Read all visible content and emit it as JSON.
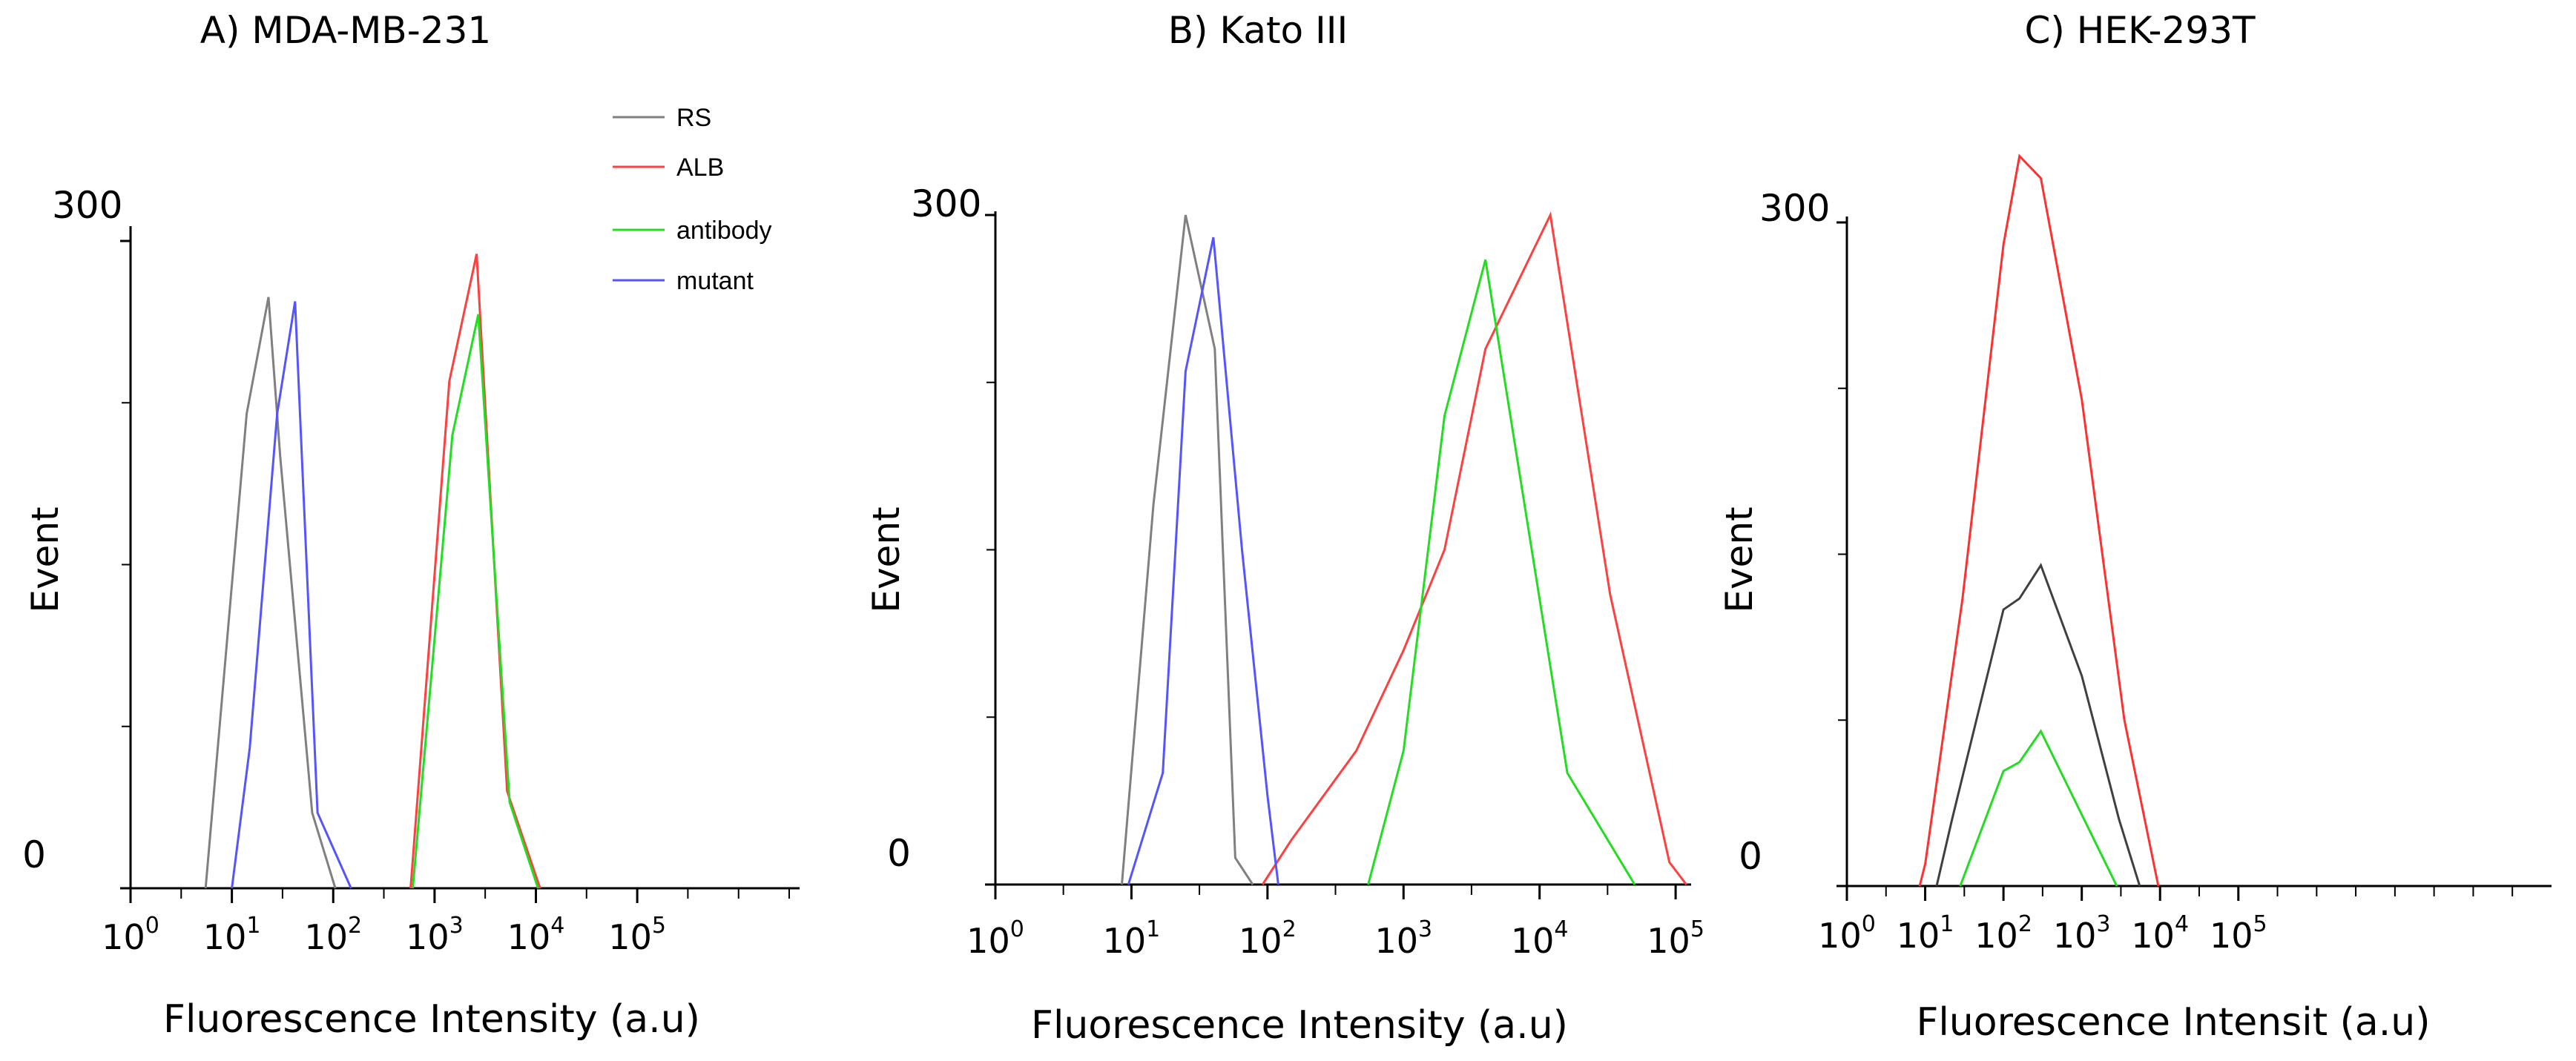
{
  "chart_data": [
    {
      "type": "line",
      "panel": "A",
      "title": "A) MDA-MB-231",
      "xlabel": "Fluorescence Intensity (a.u)",
      "ylabel": "Event",
      "xscale": "log",
      "xlim": [
        1,
        4000000
      ],
      "ylim": [
        0,
        300
      ],
      "yticks": [
        {
          "value": 0,
          "label": "0"
        },
        {
          "value": 300,
          "label": "300"
        }
      ],
      "minor_ytick_values": [
        75,
        150,
        225
      ],
      "xticks": [
        {
          "value": 1,
          "base": "10",
          "exp": "0"
        },
        {
          "value": 10,
          "base": "10",
          "exp": "1"
        },
        {
          "value": 100,
          "base": "10",
          "exp": "2"
        },
        {
          "value": 1000,
          "base": "10",
          "exp": "3"
        },
        {
          "value": 10000,
          "base": "10",
          "exp": "4"
        },
        {
          "value": 100000,
          "base": "10",
          "exp": "5"
        }
      ],
      "minor_xtick_values": [
        3.16,
        31.6,
        316,
        3160,
        31600,
        316000,
        1000000,
        3160000
      ],
      "legend": {
        "position": "top-right",
        "entries": [
          "RS",
          "ALB",
          "antibody",
          "mutant"
        ]
      },
      "series": [
        {
          "name": "RS",
          "color": "#808080",
          "x": [
            5.5,
            14,
            23,
            30,
            62,
            105
          ],
          "y": [
            0,
            220,
            274,
            200,
            35,
            0
          ]
        },
        {
          "name": "ALB",
          "color": "#ff4040",
          "x": [
            580,
            1400,
            2600,
            5200,
            11000
          ],
          "y": [
            0,
            235,
            294,
            45,
            0
          ]
        },
        {
          "name": "antibody",
          "color": "#22dd22",
          "x": [
            610,
            1500,
            2700,
            5500,
            10500
          ],
          "y": [
            0,
            210,
            266,
            40,
            0
          ]
        },
        {
          "name": "mutant",
          "color": "#5555ff",
          "x": [
            10,
            15,
            28,
            42,
            70,
            150
          ],
          "y": [
            0,
            65,
            220,
            272,
            35,
            0
          ]
        }
      ]
    },
    {
      "type": "line",
      "panel": "B",
      "title": "B) Kato III",
      "xlabel": "Fluorescence Intensity (a.u)",
      "ylabel": "Event",
      "xscale": "log",
      "xlim": [
        1,
        130000
      ],
      "ylim": [
        0,
        300
      ],
      "yticks": [
        {
          "value": 0,
          "label": "0"
        },
        {
          "value": 300,
          "label": "300"
        }
      ],
      "minor_ytick_values": [
        75,
        150,
        225
      ],
      "xticks": [
        {
          "value": 1,
          "base": "10",
          "exp": "0"
        },
        {
          "value": 10,
          "base": "10",
          "exp": "1"
        },
        {
          "value": 100,
          "base": "10",
          "exp": "2"
        },
        {
          "value": 1000,
          "base": "10",
          "exp": "3"
        },
        {
          "value": 10000,
          "base": "10",
          "exp": "4"
        },
        {
          "value": 100000,
          "base": "10",
          "exp": "5"
        }
      ],
      "minor_xtick_values": [
        3.16,
        31.6,
        316,
        3160,
        31600
      ],
      "legend": null,
      "series": [
        {
          "name": "RS",
          "color": "#808080",
          "x": [
            8.5,
            14.5,
            25,
            41,
            58,
            78
          ],
          "y": [
            0,
            170,
            300,
            240,
            12,
            0
          ]
        },
        {
          "name": "ALB",
          "color": "#ff4040",
          "x": [
            92,
            150,
            450,
            1000,
            2000,
            4000,
            12000,
            33000,
            90000,
            120000
          ],
          "y": [
            0,
            20,
            60,
            105,
            150,
            240,
            300,
            130,
            10,
            0
          ]
        },
        {
          "name": "antibody",
          "color": "#22dd22",
          "x": [
            550,
            1000,
            2000,
            4000,
            16000,
            50000
          ],
          "y": [
            0,
            60,
            210,
            280,
            50,
            0
          ]
        },
        {
          "name": "mutant",
          "color": "#5555ff",
          "x": [
            9.5,
            17,
            25,
            40,
            65,
            100,
            120
          ],
          "y": [
            0,
            50,
            230,
            290,
            150,
            40,
            0
          ]
        }
      ]
    },
    {
      "type": "line",
      "panel": "C",
      "title": "C)  HEK-293T",
      "xlabel": "Fluorescence Intensit (a.u)",
      "ylabel": "Event",
      "xscale": "log",
      "xlim": [
        1,
        1000000000
      ],
      "ylim": [
        0,
        300
      ],
      "yticks": [
        {
          "value": 0,
          "label": "0"
        },
        {
          "value": 300,
          "label": "300"
        }
      ],
      "minor_ytick_values": [
        75,
        150,
        225
      ],
      "xticks": [
        {
          "value": 1,
          "base": "10",
          "exp": "0"
        },
        {
          "value": 10,
          "base": "10",
          "exp": "1"
        },
        {
          "value": 100,
          "base": "10",
          "exp": "2"
        },
        {
          "value": 1000,
          "base": "10",
          "exp": "3"
        },
        {
          "value": 10000,
          "base": "10",
          "exp": "4"
        },
        {
          "value": 100000,
          "base": "10",
          "exp": "5"
        }
      ],
      "minor_xtick_values": [
        3.16,
        31.6,
        316,
        3160,
        31600,
        316000,
        1000000,
        3160000,
        10000000,
        31600000,
        100000000,
        316000000
      ],
      "legend": null,
      "series": [
        {
          "name": "RS",
          "color": "#404040",
          "x": [
            14,
            22,
            100,
            160,
            300,
            1000,
            3000,
            5500
          ],
          "y": [
            0,
            30,
            125,
            130,
            145,
            95,
            30,
            0
          ]
        },
        {
          "name": "ALB",
          "color": "#ff3030",
          "x": [
            8.5,
            10,
            30,
            100,
            160,
            300,
            1000,
            3500,
            9500
          ],
          "y": [
            0,
            10,
            130,
            290,
            330,
            320,
            220,
            75,
            0
          ]
        },
        {
          "name": "antibody",
          "color": "#22dd22",
          "x": [
            28,
            100,
            160,
            300,
            2800
          ],
          "y": [
            0,
            52,
            56,
            70,
            0
          ]
        }
      ]
    }
  ]
}
